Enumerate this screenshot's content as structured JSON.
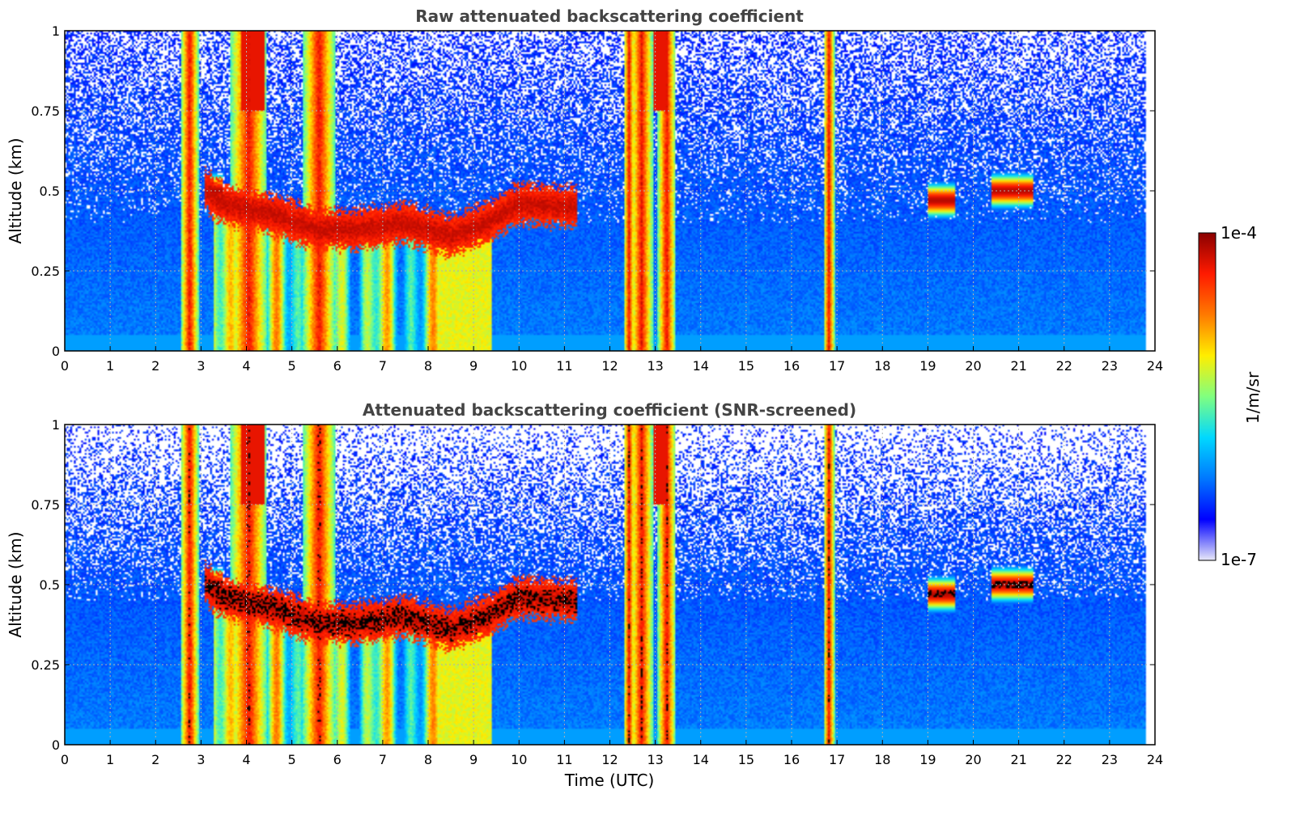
{
  "chart_data": [
    {
      "type": "heatmap",
      "title": "Raw attenuated backscattering coefficient",
      "xlabel": "",
      "ylabel": "Altitude (km)",
      "xlim": [
        0,
        24
      ],
      "ylim": [
        0,
        1
      ],
      "x_ticks": [
        "0",
        "1",
        "2",
        "3",
        "4",
        "5",
        "6",
        "7",
        "8",
        "9",
        "10",
        "11",
        "12",
        "13",
        "14",
        "15",
        "16",
        "17",
        "18",
        "19",
        "20",
        "21",
        "22",
        "23",
        "24"
      ],
      "y_ticks": [
        "0",
        "0.25",
        "0.5",
        "0.75",
        "1"
      ],
      "data_time_end": 23.8,
      "grid": true,
      "screened": false
    },
    {
      "type": "heatmap",
      "title": "Attenuated backscattering coefficient (SNR-screened)",
      "xlabel": "Time (UTC)",
      "ylabel": "Altitude (km)",
      "xlim": [
        0,
        24
      ],
      "ylim": [
        0,
        1
      ],
      "x_ticks": [
        "0",
        "1",
        "2",
        "3",
        "4",
        "5",
        "6",
        "7",
        "8",
        "9",
        "10",
        "11",
        "12",
        "13",
        "14",
        "15",
        "16",
        "17",
        "18",
        "19",
        "20",
        "21",
        "22",
        "23",
        "24"
      ],
      "y_ticks": [
        "0",
        "0.25",
        "0.5",
        "0.75",
        "1"
      ],
      "data_time_end": 23.8,
      "grid": true,
      "screened": true
    }
  ],
  "colorbar": {
    "label": "1/m/sr",
    "max_label": "1e-4",
    "min_label": "1e-7",
    "log_min": -7,
    "log_max": -4,
    "colormap": "jet",
    "stops": [
      "#e8e8f8",
      "#0000ff",
      "#0078ff",
      "#00d8ff",
      "#80ff80",
      "#ffee00",
      "#ff7a00",
      "#ff1a00",
      "#8a0000"
    ]
  },
  "features": {
    "boundary_layer_top_km": [
      [
        3.1,
        0.5
      ],
      [
        3.5,
        0.46
      ],
      [
        4.5,
        0.43
      ],
      [
        5.5,
        0.38
      ],
      [
        6.5,
        0.38
      ],
      [
        7.5,
        0.4
      ],
      [
        8.5,
        0.36
      ],
      [
        9.3,
        0.4
      ],
      [
        10,
        0.46
      ],
      [
        11,
        0.45
      ]
    ],
    "rain_shafts_utc": [
      [
        2.6,
        2.9
      ],
      [
        3.7,
        4.4
      ],
      [
        5.3,
        5.9
      ],
      [
        12.35,
        12.5
      ],
      [
        12.5,
        12.9
      ],
      [
        13.1,
        13.4
      ],
      [
        16.75,
        16.9
      ]
    ],
    "elevated_layers": [
      {
        "t": [
          20.4,
          21.3
        ],
        "alt_km": 0.5
      },
      {
        "t": [
          19.0,
          19.6
        ],
        "alt_km": 0.47
      },
      {
        "t": [
          3.2,
          3.5
        ],
        "alt_km": 0.5
      }
    ],
    "upper_cloud_utc": [
      [
        3.9,
        4.4
      ],
      [
        12.95,
        13.3
      ]
    ]
  }
}
